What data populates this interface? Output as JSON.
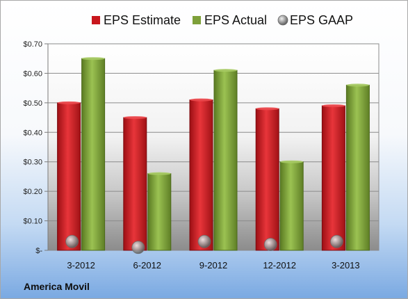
{
  "company_label": "America Movil",
  "colors": {
    "estimate": "#c8161d",
    "actual": "#7ea03a",
    "gaap": "#8a8a8a"
  },
  "chart_data": {
    "type": "bar",
    "categories": [
      "3-2012",
      "6-2012",
      "9-2012",
      "12-2012",
      "3-2013"
    ],
    "series": [
      {
        "name": "EPS Estimate",
        "values": [
          0.5,
          0.45,
          0.51,
          0.48,
          0.49
        ]
      },
      {
        "name": "EPS Actual",
        "values": [
          0.65,
          0.26,
          0.61,
          0.3,
          0.56
        ]
      },
      {
        "name": "EPS GAAP",
        "values": [
          0.03,
          0.01,
          0.03,
          0.02,
          0.03
        ],
        "marker": "bubble"
      }
    ],
    "yticks": [
      0,
      0.1,
      0.2,
      0.3,
      0.4,
      0.5,
      0.6,
      0.7
    ],
    "ytick_labels": [
      "$-",
      "$0.10",
      "$0.20",
      "$0.30",
      "$0.40",
      "$0.50",
      "$0.60",
      "$0.70"
    ],
    "ylim": [
      0,
      0.7
    ],
    "grid": true,
    "legend_position": "top"
  }
}
